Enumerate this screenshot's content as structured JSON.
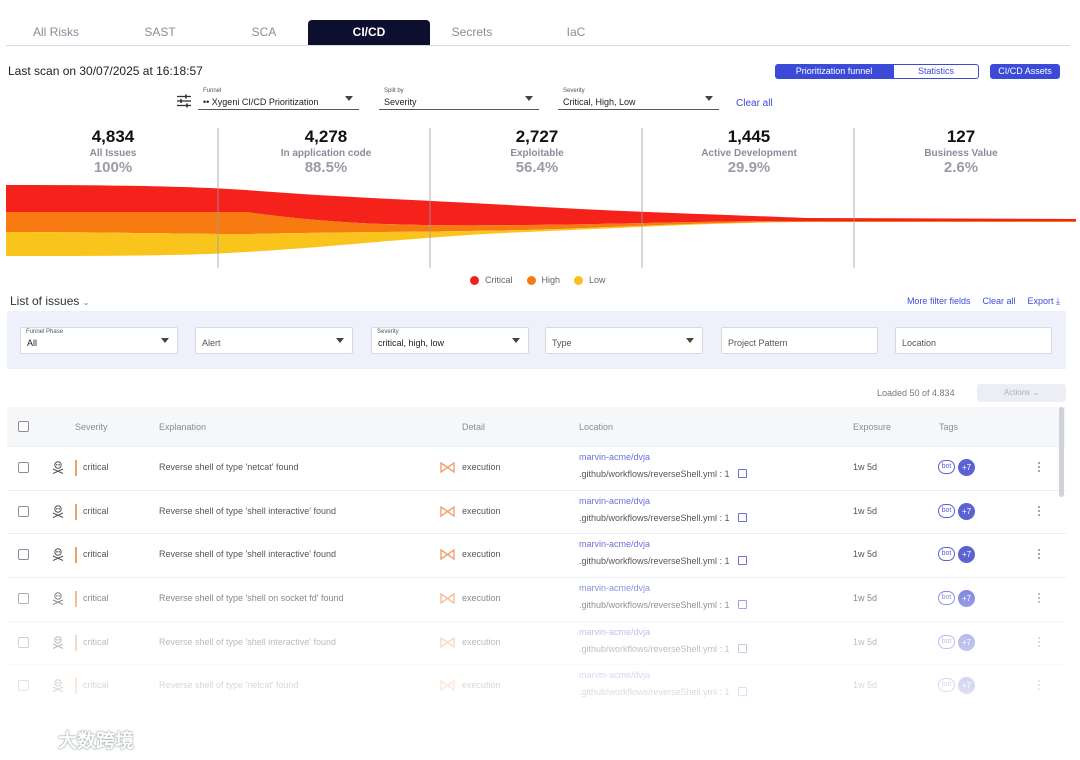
{
  "tabs": [
    {
      "label": "All Risks",
      "active": false
    },
    {
      "label": "SAST",
      "active": false
    },
    {
      "label": "SCA",
      "active": false
    },
    {
      "label": "CI/CD",
      "active": true
    },
    {
      "label": "Secrets",
      "active": false
    },
    {
      "label": "IaC",
      "active": false
    }
  ],
  "last_scan": "Last scan on 30/07/2025 at 16:18:57",
  "view_toggle": {
    "funnel": "Prioritization funnel",
    "stats": "Statistics"
  },
  "assets_button": "CI/CD Assets",
  "top_filters": {
    "funnel": {
      "label": "Funnel",
      "value": "•• Xygeni CI/CD Prioritization"
    },
    "split": {
      "label": "Split by",
      "value": "Severity"
    },
    "severity": {
      "label": "Severity",
      "value": "Critical, High, Low"
    },
    "clear_all": "Clear all"
  },
  "funnel_stages": [
    {
      "count": "4,834",
      "name": "All Issues",
      "pct": "100%"
    },
    {
      "count": "4,278",
      "name": "In application code",
      "pct": "88.5%"
    },
    {
      "count": "2,727",
      "name": "Exploitable",
      "pct": "56.4%"
    },
    {
      "count": "1,445",
      "name": "Active Development",
      "pct": "29.9%"
    },
    {
      "count": "127",
      "name": "Business Value",
      "pct": "2.6%"
    }
  ],
  "funnel_colors": {
    "critical": "#f4221a",
    "high": "#f87b12",
    "low": "#f9c41b"
  },
  "legend": [
    {
      "label": "Critical",
      "color": "#e8241c"
    },
    {
      "label": "High",
      "color": "#f47a12"
    },
    {
      "label": "Low",
      "color": "#f6c11d"
    }
  ],
  "list": {
    "title": "List of issues",
    "more_filters": "More filter fields",
    "clear_all": "Clear all",
    "export": "Export"
  },
  "list_filters": {
    "phase": {
      "label": "Funnel Phase",
      "value": "All"
    },
    "alert": {
      "value": "Alert"
    },
    "severity": {
      "label": "Severity",
      "value": "critical, high, low"
    },
    "type": {
      "value": "Type"
    },
    "project": {
      "placeholder": "Project Pattern"
    },
    "location": {
      "placeholder": "Location"
    }
  },
  "loaded": "Loaded 50 of 4.834",
  "actions": "Actions",
  "columns": {
    "severity": "Severity",
    "explanation": "Explanation",
    "detail": "Detail",
    "location": "Location",
    "exposure": "Exposure",
    "tags": "Tags"
  },
  "rows": [
    {
      "severity": "critical",
      "explanation": "Reverse shell of type 'netcat' found",
      "detail": "execution",
      "repo": "marvin-acme/dvja",
      "path": ".github/workflows/reverseShell.yml : 1",
      "exposure": "1w 5d",
      "tag": "bot",
      "more": "+7"
    },
    {
      "severity": "critical",
      "explanation": "Reverse shell of type 'shell interactive' found",
      "detail": "execution",
      "repo": "marvin-acme/dvja",
      "path": ".github/workflows/reverseShell.yml : 1",
      "exposure": "1w 5d",
      "tag": "bot",
      "more": "+7"
    },
    {
      "severity": "critical",
      "explanation": "Reverse shell of type 'shell interactive' found",
      "detail": "execution",
      "repo": "marvin-acme/dvja",
      "path": ".github/workflows/reverseShell.yml : 1",
      "exposure": "1w 5d",
      "tag": "bot",
      "more": "+7"
    },
    {
      "severity": "critical",
      "explanation": "Reverse shell of type 'shell on socket fd' found",
      "detail": "execution",
      "repo": "marvin-acme/dvja",
      "path": ".github/workflows/reverseShell.yml : 1",
      "exposure": "1w 5d",
      "tag": "bot",
      "more": "+7"
    },
    {
      "severity": "critical",
      "explanation": "Reverse shell of type 'shell interactive' found",
      "detail": "execution",
      "repo": "marvin-acme/dvja",
      "path": ".github/workflows/reverseShell.yml : 1",
      "exposure": "1w 5d",
      "tag": "bot",
      "more": "+7"
    },
    {
      "severity": "critical",
      "explanation": "Reverse shell of type 'netcat' found",
      "detail": "execution",
      "repo": "marvin-acme/dvja",
      "path": ".github/workflows/reverseShell.yml : 1",
      "exposure": "1w 5d",
      "tag": "bot",
      "more": "+7"
    }
  ],
  "watermark": "大数跨境"
}
